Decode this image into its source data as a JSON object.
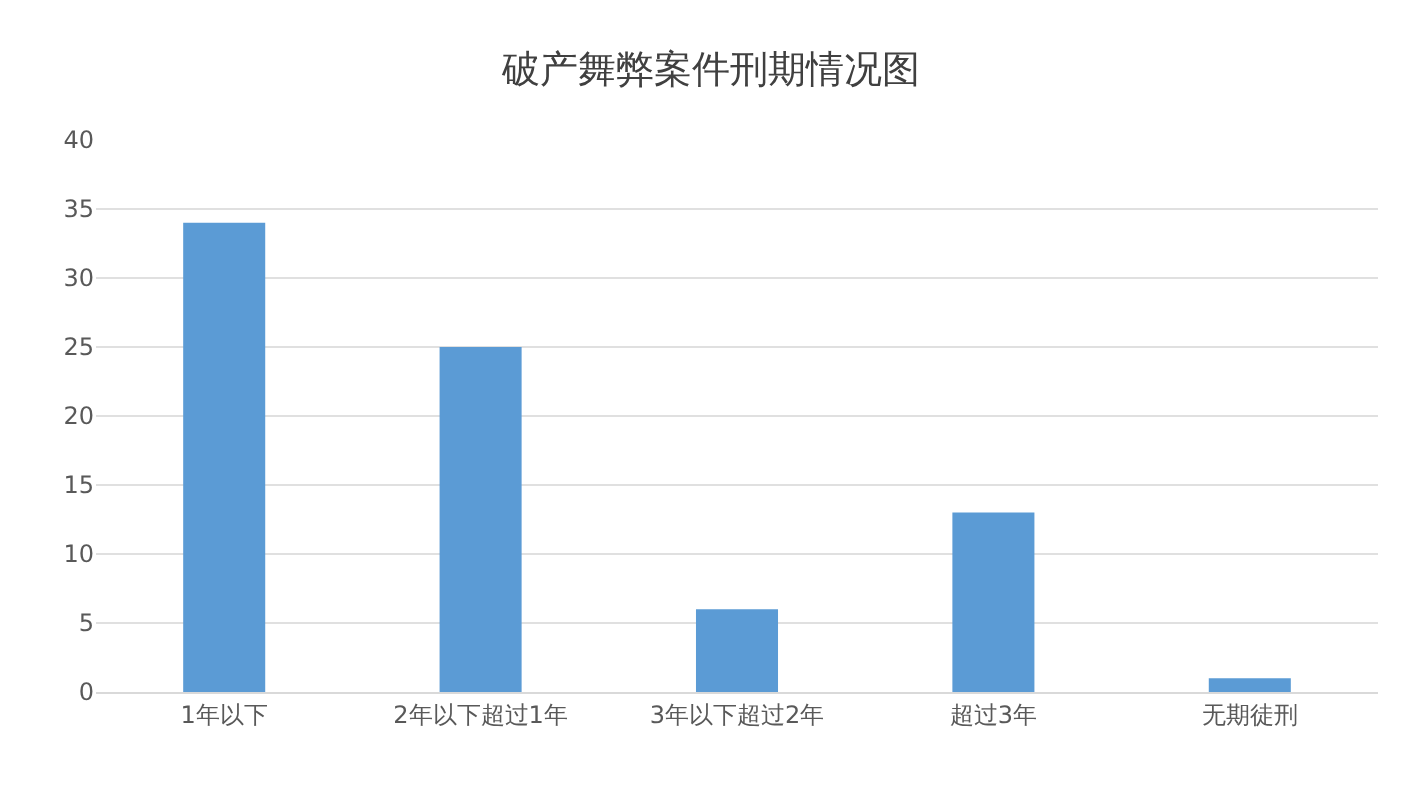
{
  "chart_data": {
    "type": "bar",
    "title": "破产舞弊案件刑期情况图",
    "categories": [
      "1年以下",
      "2年以下超过1年",
      "3年以下超过2年",
      "超过3年",
      "无期徒刑"
    ],
    "values": [
      34,
      25,
      6,
      13,
      1
    ],
    "color": "#5b9bd5",
    "ylim": [
      0,
      40
    ],
    "yticks": [
      0,
      5,
      10,
      15,
      20,
      25,
      30,
      35,
      40
    ],
    "grid": "y"
  }
}
